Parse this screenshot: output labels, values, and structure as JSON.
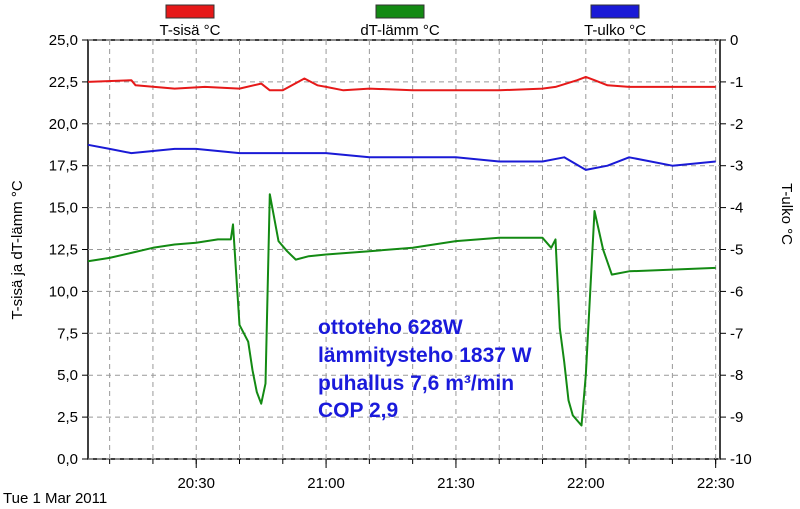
{
  "chart_data": {
    "type": "line",
    "footer": "Tue 1 Mar 2011",
    "ylabel_left": "T-sisä ja dT-lämm °C",
    "ylabel_right": "T-ulko °C",
    "ylim_left": [
      0,
      25
    ],
    "ylim_right": [
      -10,
      0
    ],
    "left_ticks": [
      "0,0",
      "2,5",
      "5,0",
      "7,5",
      "10,0",
      "12,5",
      "15,0",
      "17,5",
      "20,0",
      "22,5",
      "25,0"
    ],
    "right_ticks": [
      "-10",
      "-9",
      "-8",
      "-7",
      "-6",
      "-5",
      "-4",
      "-3",
      "-2",
      "-1",
      "0"
    ],
    "x_tick_labels": [
      "20:30",
      "21:00",
      "21:30",
      "22:00",
      "22:30"
    ],
    "x_tick_minutes": [
      1230,
      1260,
      1290,
      1320,
      1350
    ],
    "xlim_minutes": [
      1205,
      1351
    ],
    "grid": true,
    "legend_position": "top",
    "annotation": [
      "ottoteho 628W",
      "lämmitysteho 1837 W",
      "puhallus 7,6 m³/min",
      "COP 2,9"
    ],
    "series": [
      {
        "name": "T-sisä °C",
        "axis": "left",
        "color": "#e61919",
        "x": [
          1205,
          1215,
          1216,
          1225,
          1232,
          1240,
          1245,
          1247,
          1250,
          1255,
          1258,
          1260,
          1264,
          1270,
          1280,
          1290,
          1300,
          1310,
          1313,
          1318,
          1320,
          1322,
          1325,
          1330,
          1340,
          1350
        ],
        "y": [
          22.5,
          22.6,
          22.3,
          22.1,
          22.2,
          22.1,
          22.4,
          22.0,
          22.0,
          22.7,
          22.3,
          22.2,
          22.0,
          22.1,
          22.0,
          22.0,
          22.0,
          22.1,
          22.2,
          22.6,
          22.8,
          22.6,
          22.3,
          22.2,
          22.2,
          22.2
        ]
      },
      {
        "name": "dT-lämm °C",
        "axis": "left",
        "color": "#138a13",
        "x": [
          1205,
          1210,
          1215,
          1220,
          1225,
          1230,
          1235,
          1238,
          1238.5,
          1240,
          1242,
          1243,
          1244,
          1245,
          1246,
          1247,
          1249,
          1251,
          1253,
          1256,
          1260,
          1270,
          1280,
          1290,
          1300,
          1310,
          1312,
          1313,
          1314,
          1315,
          1316,
          1317,
          1319,
          1320,
          1322,
          1324,
          1326,
          1330,
          1340,
          1350
        ],
        "y": [
          11.8,
          12.0,
          12.3,
          12.6,
          12.8,
          12.9,
          13.1,
          13.1,
          14.0,
          8.0,
          7.0,
          5.3,
          4.0,
          3.3,
          4.5,
          15.8,
          13.0,
          12.4,
          11.9,
          12.1,
          12.2,
          12.4,
          12.6,
          13.0,
          13.2,
          13.2,
          12.6,
          13.1,
          7.8,
          5.8,
          3.5,
          2.6,
          2.0,
          5.0,
          14.8,
          12.5,
          11.0,
          11.2,
          11.3,
          11.4
        ]
      },
      {
        "name": "T-ulko °C",
        "axis": "right",
        "color": "#1a1ad6",
        "x": [
          1205,
          1210,
          1215,
          1225,
          1230,
          1240,
          1250,
          1260,
          1270,
          1280,
          1290,
          1300,
          1310,
          1315,
          1320,
          1325,
          1330,
          1340,
          1350
        ],
        "y": [
          -2.5,
          -2.6,
          -2.7,
          -2.6,
          -2.6,
          -2.7,
          -2.7,
          -2.7,
          -2.8,
          -2.8,
          -2.8,
          -2.9,
          -2.9,
          -2.8,
          -3.1,
          -3.0,
          -2.8,
          -3.0,
          -2.9
        ]
      }
    ]
  }
}
